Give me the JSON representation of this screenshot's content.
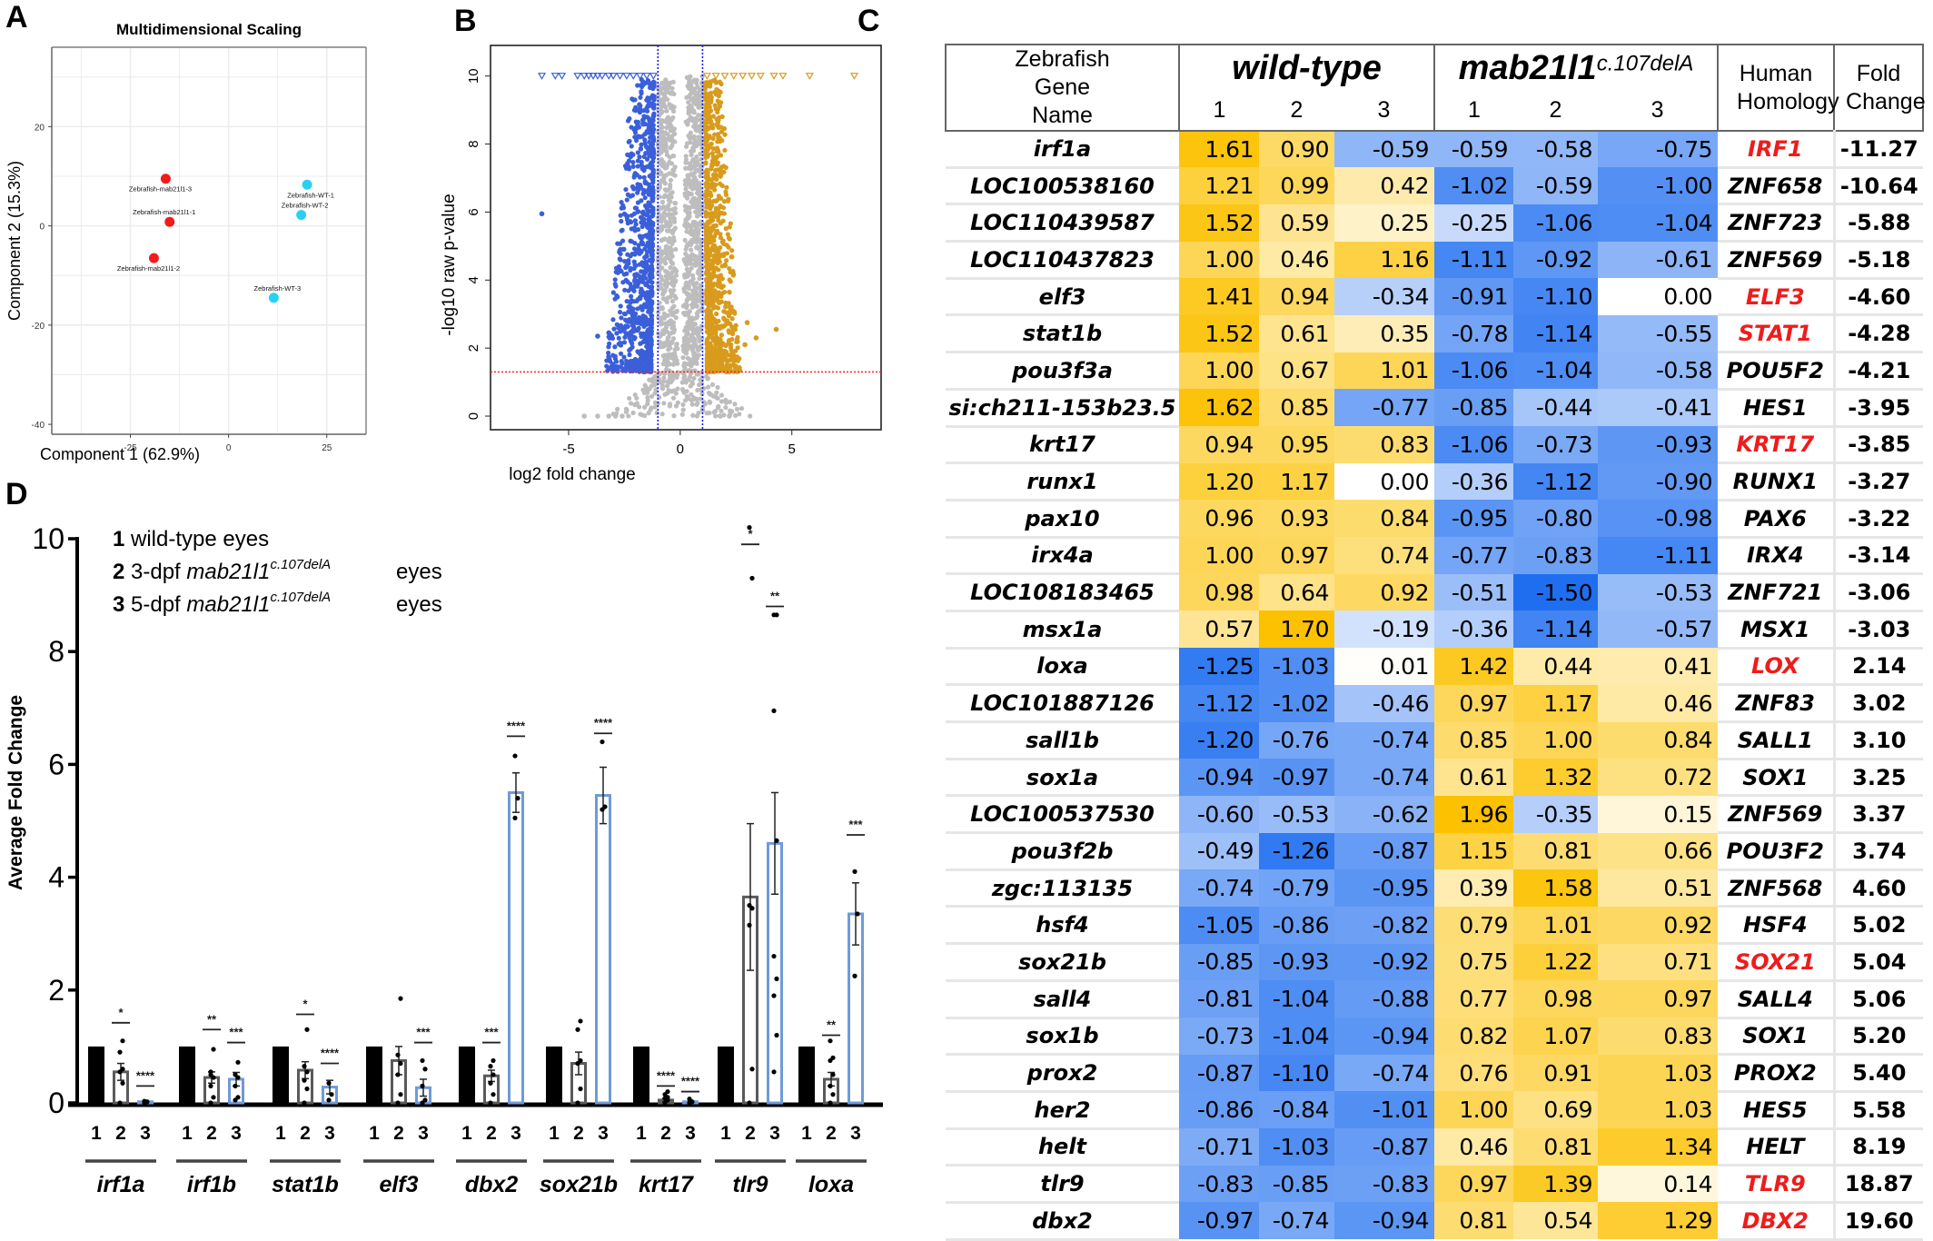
{
  "panels": {
    "A": "A",
    "B": "B",
    "C": "C",
    "D": "D"
  },
  "chart_data": [
    {
      "id": "A",
      "type": "scatter",
      "title": "Multidimensional Scaling",
      "xlabel": "Component 1 (62.9%)",
      "ylabel": "Component 2 (15.3%)",
      "xlim": [
        -45,
        35
      ],
      "ylim": [
        -42,
        36
      ],
      "xticks": [
        -25,
        0,
        25
      ],
      "yticks": [
        -40,
        -20,
        0,
        20
      ],
      "grid": true,
      "colors": {
        "mutant": "#f01c1c",
        "wildtype": "#2ad0f4"
      },
      "points": [
        {
          "label": "Zebrafish-mab21l1-3",
          "group": "mutant",
          "x": -16,
          "y": 9.5
        },
        {
          "label": "Zebrafish-mab21l1-1",
          "group": "mutant",
          "x": -15,
          "y": 0.8
        },
        {
          "label": "Zebrafish-mab21l1-2",
          "group": "mutant",
          "x": -19,
          "y": -6.5
        },
        {
          "label": "Zebrafish-WT-1",
          "group": "wildtype",
          "x": 20,
          "y": 8.3
        },
        {
          "label": "Zebrafish-WT-2",
          "group": "wildtype",
          "x": 18.5,
          "y": 2.2
        },
        {
          "label": "Zebrafish-WT-3",
          "group": "wildtype",
          "x": 11.5,
          "y": -14.5
        }
      ]
    },
    {
      "id": "B",
      "type": "scatter",
      "title": "",
      "xlabel": "log2 fold change",
      "ylabel": "-log10 raw p-value",
      "xlim": [
        -8.5,
        9
      ],
      "ylim": [
        -0.4,
        10.9
      ],
      "xticks": [
        -5,
        0,
        5
      ],
      "yticks": [
        0,
        2,
        4,
        6,
        8,
        10
      ],
      "fc_threshold": [
        -1,
        1
      ],
      "p_threshold": 1.3,
      "colors": {
        "down": "#3a5fd9",
        "up": "#d89b1c",
        "ns": "#bdbdbd",
        "fc_line": "#1a1aff",
        "p_line": "#ff2020"
      },
      "notes": "Volcano plot; triangles at y=10 denote points capped at 10",
      "capped_down_x": [
        -6.2,
        -5.6,
        -5.3,
        -4.6,
        -4.3,
        -4.1,
        -3.9,
        -3.7,
        -3.5,
        -3.2,
        -3.0,
        -2.7,
        -2.4,
        -2.1,
        -1.8,
        -1.5,
        -1.2
      ],
      "capped_up_x": [
        1.2,
        1.6,
        2.0,
        2.4,
        2.8,
        3.2,
        3.6,
        4.2,
        4.6,
        5.8,
        7.8
      ],
      "outliers_down": [
        [
          -6.2,
          5.95
        ],
        [
          -3.7,
          2.35
        ],
        [
          -3.2,
          2.45
        ],
        [
          -4.3,
          0
        ],
        [
          -3.7,
          0
        ],
        [
          -3.2,
          0
        ],
        [
          -2.9,
          0
        ],
        [
          -2.6,
          0
        ]
      ],
      "outliers_up": [
        [
          4.3,
          2.55
        ],
        [
          3.4,
          2.3
        ],
        [
          3.0,
          2.75
        ],
        [
          2.9,
          2.1
        ],
        [
          1.8,
          0
        ],
        [
          2.2,
          0
        ]
      ]
    },
    {
      "id": "C",
      "type": "heatmap",
      "columns": {
        "gene": "Zebrafish Gene Name",
        "wt_group": "wild-type",
        "mut_group": "mab21l1",
        "mut_sup": "c.107delA",
        "reps": [
          "1",
          "2",
          "3"
        ],
        "human": "Human Homology",
        "fold": "Fold Change"
      },
      "scale": {
        "min": -1.5,
        "max": 1.96,
        "neg_color": "#1f6ef0",
        "mid_color": "#ffffff",
        "pos_color": "#fcc100"
      },
      "rows": [
        {
          "gene": "irf1a",
          "wt": [
            1.61,
            0.9,
            -0.59
          ],
          "mut": [
            -0.59,
            -0.58,
            -0.75
          ],
          "human": "IRF1",
          "red": true,
          "fold": "-11.27"
        },
        {
          "gene": "LOC100538160",
          "wt": [
            1.21,
            0.99,
            0.42
          ],
          "mut": [
            -1.02,
            -0.59,
            -1.0
          ],
          "human": "ZNF658",
          "red": false,
          "fold": "-10.64"
        },
        {
          "gene": "LOC110439587",
          "wt": [
            1.52,
            0.59,
            0.25
          ],
          "mut": [
            -0.25,
            -1.06,
            -1.04
          ],
          "human": "ZNF723",
          "red": false,
          "fold": "-5.88"
        },
        {
          "gene": "LOC110437823",
          "wt": [
            1.0,
            0.46,
            1.16
          ],
          "mut": [
            -1.11,
            -0.92,
            -0.61
          ],
          "human": "ZNF569",
          "red": false,
          "fold": "-5.18"
        },
        {
          "gene": "elf3",
          "wt": [
            1.41,
            0.94,
            -0.34
          ],
          "mut": [
            -0.91,
            -1.1,
            0.0
          ],
          "human": "ELF3",
          "red": true,
          "fold": "-4.60"
        },
        {
          "gene": "stat1b",
          "wt": [
            1.52,
            0.61,
            0.35
          ],
          "mut": [
            -0.78,
            -1.14,
            -0.55
          ],
          "human": "STAT1",
          "red": true,
          "fold": "-4.28"
        },
        {
          "gene": "pou3f3a",
          "wt": [
            1.0,
            0.67,
            1.01
          ],
          "mut": [
            -1.06,
            -1.04,
            -0.58
          ],
          "human": "POU5F2",
          "red": false,
          "fold": "-4.21"
        },
        {
          "gene": "si:ch211-153b23.5",
          "wt": [
            1.62,
            0.85,
            -0.77
          ],
          "mut": [
            -0.85,
            -0.44,
            -0.41
          ],
          "human": "HES1",
          "red": false,
          "fold": "-3.95"
        },
        {
          "gene": "krt17",
          "wt": [
            0.94,
            0.95,
            0.83
          ],
          "mut": [
            -1.06,
            -0.73,
            -0.93
          ],
          "human": "KRT17",
          "red": true,
          "fold": "-3.85"
        },
        {
          "gene": "runx1",
          "wt": [
            1.2,
            1.17,
            0.0
          ],
          "mut": [
            -0.36,
            -1.12,
            -0.9
          ],
          "human": "RUNX1",
          "red": false,
          "fold": "-3.27"
        },
        {
          "gene": "pax10",
          "wt": [
            0.96,
            0.93,
            0.84
          ],
          "mut": [
            -0.95,
            -0.8,
            -0.98
          ],
          "human": "PAX6",
          "red": false,
          "fold": "-3.22"
        },
        {
          "gene": "irx4a",
          "wt": [
            1.0,
            0.97,
            0.74
          ],
          "mut": [
            -0.77,
            -0.83,
            -1.11
          ],
          "human": "IRX4",
          "red": false,
          "fold": "-3.14"
        },
        {
          "gene": "LOC108183465",
          "wt": [
            0.98,
            0.64,
            0.92
          ],
          "mut": [
            -0.51,
            -1.5,
            -0.53
          ],
          "human": "ZNF721",
          "red": false,
          "fold": "-3.06"
        },
        {
          "gene": "msx1a",
          "wt": [
            0.57,
            1.7,
            -0.19
          ],
          "mut": [
            -0.36,
            -1.14,
            -0.57
          ],
          "human": "MSX1",
          "red": false,
          "fold": "-3.03"
        },
        {
          "gene": "loxa",
          "wt": [
            -1.25,
            -1.03,
            0.01
          ],
          "mut": [
            1.42,
            0.44,
            0.41
          ],
          "human": "LOX",
          "red": true,
          "fold": "2.14"
        },
        {
          "gene": "LOC101887126",
          "wt": [
            -1.12,
            -1.02,
            -0.46
          ],
          "mut": [
            0.97,
            1.17,
            0.46
          ],
          "human": "ZNF83",
          "red": false,
          "fold": "3.02"
        },
        {
          "gene": "sall1b",
          "wt": [
            -1.2,
            -0.76,
            -0.74
          ],
          "mut": [
            0.85,
            1.0,
            0.84
          ],
          "human": "SALL1",
          "red": false,
          "fold": "3.10"
        },
        {
          "gene": "sox1a",
          "wt": [
            -0.94,
            -0.97,
            -0.74
          ],
          "mut": [
            0.61,
            1.32,
            0.72
          ],
          "human": "SOX1",
          "red": false,
          "fold": "3.25"
        },
        {
          "gene": "LOC100537530",
          "wt": [
            -0.6,
            -0.53,
            -0.62
          ],
          "mut": [
            1.96,
            -0.35,
            0.15
          ],
          "human": "ZNF569",
          "red": false,
          "fold": "3.37"
        },
        {
          "gene": "pou3f2b",
          "wt": [
            -0.49,
            -1.26,
            -0.87
          ],
          "mut": [
            1.15,
            0.81,
            0.66
          ],
          "human": "POU3F2",
          "red": false,
          "fold": "3.74"
        },
        {
          "gene": "zgc:113135",
          "wt": [
            -0.74,
            -0.79,
            -0.95
          ],
          "mut": [
            0.39,
            1.58,
            0.51
          ],
          "human": "ZNF568",
          "red": false,
          "fold": "4.60"
        },
        {
          "gene": "hsf4",
          "wt": [
            -1.05,
            -0.86,
            -0.82
          ],
          "mut": [
            0.79,
            1.01,
            0.92
          ],
          "human": "HSF4",
          "red": false,
          "fold": "5.02"
        },
        {
          "gene": "sox21b",
          "wt": [
            -0.85,
            -0.93,
            -0.92
          ],
          "mut": [
            0.75,
            1.22,
            0.71
          ],
          "human": "SOX21",
          "red": true,
          "fold": "5.04"
        },
        {
          "gene": "sall4",
          "wt": [
            -0.81,
            -1.04,
            -0.88
          ],
          "mut": [
            0.77,
            0.98,
            0.97
          ],
          "human": "SALL4",
          "red": false,
          "fold": "5.06"
        },
        {
          "gene": "sox1b",
          "wt": [
            -0.73,
            -1.04,
            -0.94
          ],
          "mut": [
            0.82,
            1.07,
            0.83
          ],
          "human": "SOX1",
          "red": false,
          "fold": "5.20"
        },
        {
          "gene": "prox2",
          "wt": [
            -0.87,
            -1.1,
            -0.74
          ],
          "mut": [
            0.76,
            0.91,
            1.03
          ],
          "human": "PROX2",
          "red": false,
          "fold": "5.40"
        },
        {
          "gene": "her2",
          "wt": [
            -0.86,
            -0.84,
            -1.01
          ],
          "mut": [
            1.0,
            0.69,
            1.03
          ],
          "human": "HES5",
          "red": false,
          "fold": "5.58"
        },
        {
          "gene": "helt",
          "wt": [
            -0.71,
            -1.03,
            -0.87
          ],
          "mut": [
            0.46,
            0.81,
            1.34
          ],
          "human": "HELT",
          "red": false,
          "fold": "8.19"
        },
        {
          "gene": "tlr9",
          "wt": [
            -0.83,
            -0.85,
            -0.83
          ],
          "mut": [
            0.97,
            1.39,
            0.14
          ],
          "human": "TLR9",
          "red": true,
          "fold": "18.87"
        },
        {
          "gene": "dbx2",
          "wt": [
            -0.97,
            -0.74,
            -0.94
          ],
          "mut": [
            0.81,
            0.54,
            1.29
          ],
          "human": "DBX2",
          "red": true,
          "fold": "19.60"
        }
      ]
    },
    {
      "id": "D",
      "type": "bar",
      "title": "",
      "xlabel": "",
      "ylabel": "Average Fold Change",
      "ylim": [
        0,
        10
      ],
      "yticks": [
        0,
        2,
        4,
        6,
        8,
        10
      ],
      "legend": [
        {
          "num": "1",
          "text": "wild-type eyes",
          "gene": "",
          "sup": "",
          "tail": ""
        },
        {
          "num": "2",
          "text": "3-dpf",
          "gene": "mab21l1",
          "sup": "c.107delA",
          "tail": "eyes"
        },
        {
          "num": "3",
          "text": "5-dpf",
          "gene": "mab21l1",
          "sup": "c.107delA",
          "tail": "eyes"
        }
      ],
      "legend_position": "top-left",
      "condition_labels": [
        "1",
        "2",
        "3"
      ],
      "colors": {
        "c1": "#000000",
        "c2": "#5a5a5a",
        "c3": "#6f9ad8"
      },
      "categories": [
        "irf1a",
        "irf1b",
        "stat1b",
        "elf3",
        "dbx2",
        "sox21b",
        "krt17",
        "tlr9",
        "loxa"
      ],
      "series": [
        {
          "name": "wild-type eyes",
          "values": [
            1,
            1,
            1,
            1,
            1,
            1,
            1,
            1,
            1
          ],
          "sem": [
            0,
            0,
            0,
            0,
            0,
            0,
            0,
            0,
            0
          ]
        },
        {
          "name": "3-dpf mab21l1 c.107delA eyes",
          "values": [
            0.55,
            0.45,
            0.58,
            0.75,
            0.48,
            0.7,
            0.05,
            3.65,
            0.42
          ],
          "sem": [
            0.15,
            0.1,
            0.15,
            0.25,
            0.1,
            0.2,
            0.03,
            1.3,
            0.12
          ]
        },
        {
          "name": "5-dpf mab21l1 c.107delA eyes",
          "values": [
            0.02,
            0.42,
            0.28,
            0.27,
            5.5,
            5.45,
            0.02,
            4.6,
            3.35
          ],
          "sem": [
            0.01,
            0.12,
            0.12,
            0.15,
            0.35,
            0.5,
            0.01,
            0.9,
            0.55
          ]
        }
      ],
      "significance": [
        {
          "stars": [
            "*",
            "****"
          ],
          "bar_y": [
            1.42,
            0.3
          ]
        },
        {
          "stars": [
            "**",
            "***"
          ],
          "bar_y": [
            1.3,
            1.07
          ]
        },
        {
          "stars": [
            "*",
            "****"
          ],
          "bar_y": [
            1.57,
            0.7
          ]
        },
        {
          "stars": [
            "",
            "***"
          ],
          "bar_y": [
            null,
            1.07
          ]
        },
        {
          "stars": [
            "***",
            "****"
          ],
          "bar_y": [
            1.07,
            6.5
          ]
        },
        {
          "stars": [
            "",
            "****"
          ],
          "bar_y": [
            null,
            6.55
          ]
        },
        {
          "stars": [
            "****",
            "****"
          ],
          "bar_y": [
            0.3,
            0.2
          ]
        },
        {
          "stars": [
            "*",
            "**"
          ],
          "bar_y": [
            9.9,
            8.8
          ]
        },
        {
          "stars": [
            "**",
            "***"
          ],
          "bar_y": [
            1.2,
            4.75
          ]
        }
      ],
      "points": [
        [
          [
            0.0,
            0.35,
            0.55,
            0.6,
            0.9,
            1.1
          ],
          [
            0.0,
            0.02,
            0.03
          ]
        ],
        [
          [
            0.0,
            0.1,
            0.3,
            0.45,
            0.5,
            0.95,
            0.55
          ],
          [
            0.05,
            0.1,
            0.3,
            0.45,
            0.5,
            0.72
          ]
        ],
        [
          [
            0.0,
            0.25,
            0.4,
            0.55,
            0.65,
            1.3
          ],
          [
            0.05,
            0.15,
            0.35
          ]
        ],
        [
          [
            0.0,
            0.15,
            0.5,
            0.7,
            0.85,
            1.85
          ],
          [
            0.0,
            0.05,
            0.3,
            0.6,
            0.75
          ]
        ],
        [
          [
            0.0,
            0.15,
            0.35,
            0.5,
            0.65,
            0.75
          ],
          [
            5.05,
            5.4,
            6.15
          ]
        ],
        [
          [
            0.0,
            0.25,
            0.7,
            0.75,
            1.3,
            1.45
          ],
          [
            5.2,
            5.25,
            6.4
          ]
        ],
        [
          [
            0.0,
            0.05,
            0.08,
            0.1,
            0.15,
            0.2
          ],
          [
            0.0,
            0.02,
            0.07
          ]
        ],
        [
          [
            0.0,
            0.6,
            3.15,
            3.45,
            3.5,
            9.3,
            10.2
          ],
          [
            0.55,
            1.2,
            1.9,
            2.2,
            2.6,
            4.65,
            6.95,
            8.65,
            8.65
          ]
        ],
        [
          [
            0.0,
            0.15,
            0.3,
            0.5,
            0.75,
            0.8,
            1.1
          ],
          [
            2.25,
            3.35,
            4.1
          ]
        ]
      ]
    }
  ]
}
